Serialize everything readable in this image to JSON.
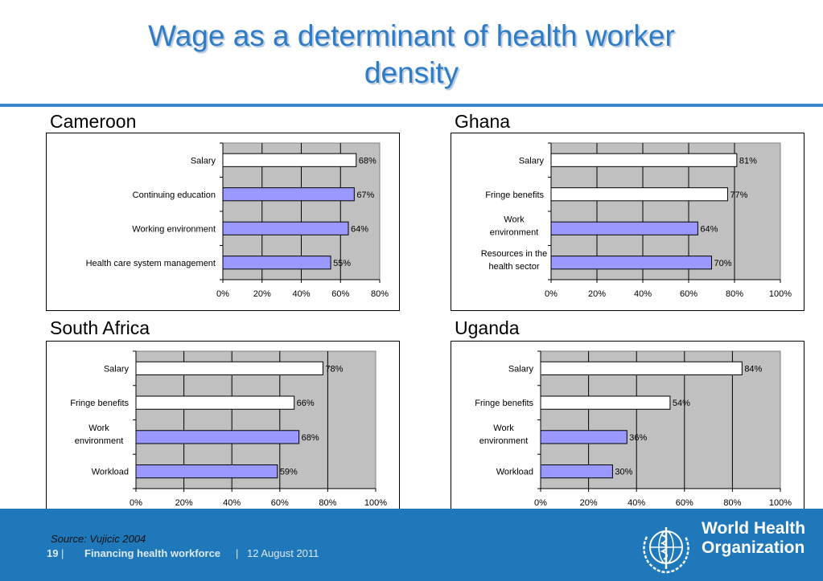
{
  "slide": {
    "title_line1": "Wage as a determinant of health worker",
    "title_line2": "density",
    "source": "Source: Vujicic 2004",
    "page_number": "19",
    "sep": "|",
    "footer_title": "Financing health workforce",
    "footer_date": "12 August 2011",
    "org_line1": "World Health",
    "org_line2": "Organization"
  },
  "colors": {
    "salary_bar": "#ffffff",
    "other_bar": "#9999ff",
    "plot_bg": "#c0c0c0",
    "accent": "#2e7bc6",
    "footer_bg": "#1f78b9"
  },
  "chart_data": [
    {
      "type": "bar",
      "orientation": "horizontal",
      "title": "Cameroon",
      "categories": [
        [
          "Salary"
        ],
        [
          "Continuing education"
        ],
        [
          "Working environment"
        ],
        [
          "Health care system management"
        ]
      ],
      "values": [
        68,
        67,
        64,
        55
      ],
      "value_labels": [
        "68%",
        "67%",
        "64%",
        "55%"
      ],
      "highlight": [
        true,
        false,
        false,
        false
      ],
      "xlim": [
        0,
        80
      ],
      "xticks": [
        "0%",
        "20%",
        "40%",
        "60%",
        "80%"
      ]
    },
    {
      "type": "bar",
      "orientation": "horizontal",
      "title": "Ghana",
      "categories": [
        [
          "Salary"
        ],
        [
          "Fringe benefits"
        ],
        [
          "Work",
          "environment"
        ],
        [
          "Resources in the",
          "health sector"
        ]
      ],
      "values": [
        81,
        77,
        64,
        70
      ],
      "value_labels": [
        "81%",
        "77%",
        "64%",
        "70%"
      ],
      "highlight": [
        true,
        true,
        false,
        false
      ],
      "xlim": [
        0,
        100
      ],
      "xticks": [
        "0%",
        "20%",
        "40%",
        "60%",
        "80%",
        "100%"
      ]
    },
    {
      "type": "bar",
      "orientation": "horizontal",
      "title": "South Africa",
      "categories": [
        [
          "Salary"
        ],
        [
          "Fringe benefits"
        ],
        [
          "Work",
          "environment"
        ],
        [
          "Workload"
        ]
      ],
      "values": [
        78,
        66,
        68,
        59
      ],
      "value_labels": [
        "78%",
        "66%",
        "68%",
        "59%"
      ],
      "highlight": [
        true,
        true,
        false,
        false
      ],
      "xlim": [
        0,
        100
      ],
      "xticks": [
        "0%",
        "20%",
        "40%",
        "60%",
        "80%",
        "100%"
      ]
    },
    {
      "type": "bar",
      "orientation": "horizontal",
      "title": "Uganda",
      "categories": [
        [
          "Salary"
        ],
        [
          "Fringe benefits"
        ],
        [
          "Work",
          "environment"
        ],
        [
          "Workload"
        ]
      ],
      "values": [
        84,
        54,
        36,
        30
      ],
      "value_labels": [
        "84%",
        "54%",
        "36%",
        "30%"
      ],
      "highlight": [
        true,
        true,
        false,
        false
      ],
      "xlim": [
        0,
        100
      ],
      "xticks": [
        "0%",
        "20%",
        "40%",
        "60%",
        "80%",
        "100%"
      ]
    }
  ]
}
